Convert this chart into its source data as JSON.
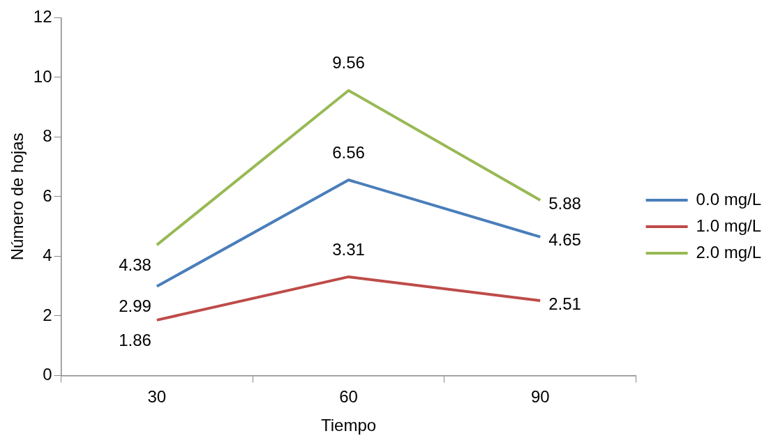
{
  "chart_data": {
    "type": "line",
    "xlabel": "Tiempo",
    "ylabel": "Número de hojas",
    "categories": [
      "30",
      "60",
      "90"
    ],
    "series": [
      {
        "name": "0.0 mg/L",
        "color": "#4a7ebb",
        "values": [
          2.99,
          6.56,
          4.65
        ]
      },
      {
        "name": "1.0 mg/L",
        "color": "#be4b48",
        "values": [
          1.86,
          3.31,
          2.51
        ]
      },
      {
        "name": "2.0 mg/L",
        "color": "#98b954",
        "values": [
          4.38,
          9.56,
          5.88
        ]
      }
    ],
    "ylim": [
      0,
      12
    ],
    "yticks": [
      0,
      2,
      4,
      6,
      8,
      10,
      12
    ],
    "grid": false,
    "legend": "right",
    "marker": "none",
    "line_style": "solid",
    "data_labels": true
  }
}
